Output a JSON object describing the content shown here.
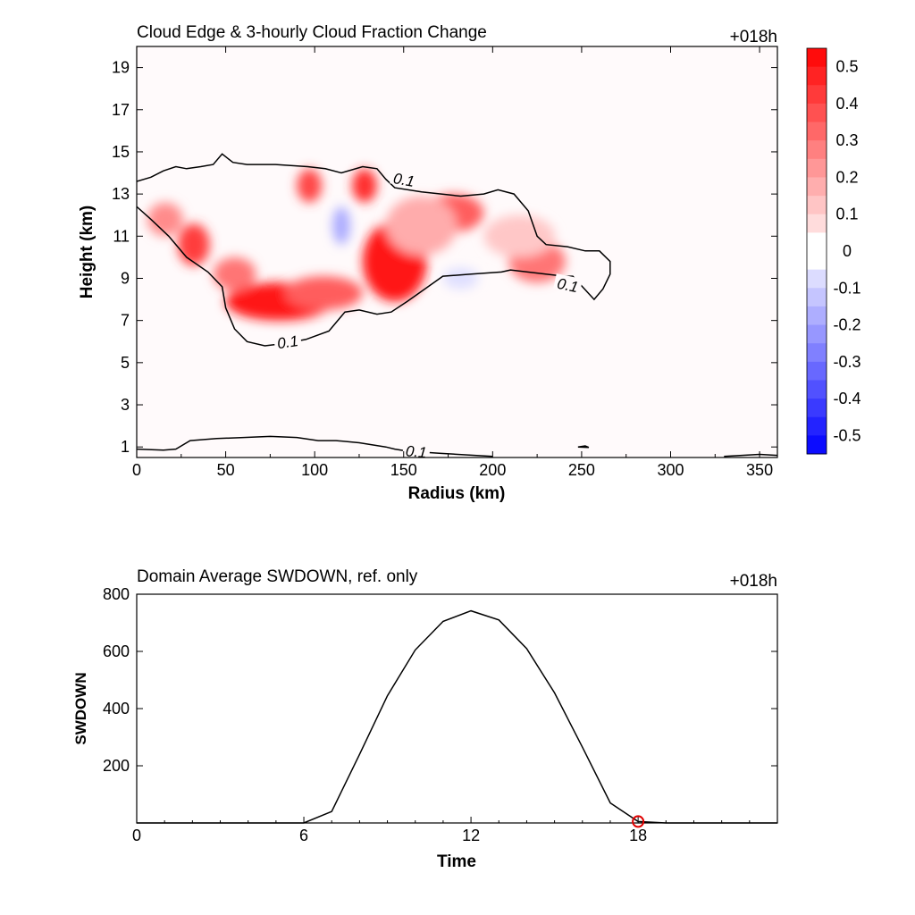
{
  "chart_data": [
    {
      "type": "heatmap",
      "title": "Cloud Edge & 3-hourly Cloud Fraction Change",
      "time_label": "+018h",
      "xlabel": "Radius (km)",
      "ylabel": "Height (km)",
      "xlim": [
        0,
        360
      ],
      "ylim": [
        0.5,
        20
      ],
      "xticks": [
        "0",
        "50",
        "100",
        "150",
        "200",
        "250",
        "300",
        "350"
      ],
      "yticks": [
        "1",
        "3",
        "5",
        "7",
        "9",
        "11",
        "13",
        "15",
        "17",
        "19"
      ],
      "colorbar": {
        "labels": [
          "0.5",
          "0.4",
          "0.3",
          "0.2",
          "0.1",
          "0",
          "-0.1",
          "-0.2",
          "-0.3",
          "-0.4",
          "-0.5"
        ],
        "range": [
          -0.55,
          0.55
        ],
        "positive_color": "#ff0000",
        "negative_color": "#0000ff"
      },
      "contour_level": "0.1",
      "blobs": [
        {
          "x": 145,
          "y": 9.8,
          "rx": 18,
          "ry": 1.9,
          "value": 0.5
        },
        {
          "x": 80,
          "y": 7.9,
          "rx": 30,
          "ry": 0.9,
          "value": 0.5
        },
        {
          "x": 105,
          "y": 8.3,
          "rx": 22,
          "ry": 0.8,
          "value": 0.35
        },
        {
          "x": 32,
          "y": 10.6,
          "rx": 9,
          "ry": 1.0,
          "value": 0.42
        },
        {
          "x": 55,
          "y": 9.2,
          "rx": 12,
          "ry": 0.8,
          "value": 0.3
        },
        {
          "x": 16,
          "y": 11.8,
          "rx": 10,
          "ry": 0.8,
          "value": 0.25
        },
        {
          "x": 97,
          "y": 13.4,
          "rx": 7,
          "ry": 0.8,
          "value": 0.4
        },
        {
          "x": 128,
          "y": 13.4,
          "rx": 7,
          "ry": 0.8,
          "value": 0.45
        },
        {
          "x": 178,
          "y": 12.1,
          "rx": 17,
          "ry": 0.9,
          "value": 0.35
        },
        {
          "x": 225,
          "y": 9.8,
          "rx": 16,
          "ry": 1.0,
          "value": 0.3
        },
        {
          "x": 215,
          "y": 11.0,
          "rx": 20,
          "ry": 1.0,
          "value": 0.12
        },
        {
          "x": 160,
          "y": 11.5,
          "rx": 20,
          "ry": 1.4,
          "value": 0.18
        },
        {
          "x": 115,
          "y": 11.5,
          "rx": 5,
          "ry": 0.9,
          "value": -0.18
        },
        {
          "x": 182,
          "y": 9.0,
          "rx": 10,
          "ry": 0.5,
          "value": -0.07
        }
      ],
      "contours": [
        {
          "label": "0.1",
          "points": [
            [
              0,
              12.4
            ],
            [
              8,
              11.8
            ],
            [
              18,
              11.0
            ],
            [
              28,
              10.0
            ],
            [
              40,
              9.3
            ],
            [
              48,
              8.6
            ],
            [
              50,
              7.6
            ],
            [
              55,
              6.6
            ],
            [
              62,
              6.0
            ],
            [
              72,
              5.8
            ],
            [
              82,
              5.9
            ],
            [
              95,
              6.1
            ],
            [
              108,
              6.5
            ],
            [
              117,
              7.4
            ],
            [
              125,
              7.5
            ],
            [
              135,
              7.3
            ],
            [
              143,
              7.4
            ],
            [
              152,
              7.9
            ],
            [
              162,
              8.5
            ],
            [
              172,
              9.1
            ],
            [
              188,
              9.2
            ],
            [
              205,
              9.3
            ],
            [
              210,
              9.4
            ],
            [
              240,
              9.1
            ],
            [
              245,
              9.1
            ],
            [
              257,
              8.0
            ],
            [
              262,
              8.5
            ],
            [
              266,
              9.2
            ],
            [
              266,
              9.8
            ],
            [
              260,
              10.3
            ],
            [
              252,
              10.3
            ],
            [
              242,
              10.5
            ],
            [
              230,
              10.6
            ],
            [
              225,
              11.0
            ],
            [
              220,
              12.2
            ],
            [
              212,
              13.0
            ],
            [
              203,
              13.2
            ],
            [
              195,
              13.0
            ],
            [
              182,
              12.9
            ],
            [
              160,
              13.1
            ],
            [
              145,
              13.3
            ],
            [
              140,
              13.7
            ],
            [
              135,
              14.2
            ],
            [
              127,
              14.3
            ],
            [
              115,
              14.0
            ],
            [
              106,
              14.2
            ],
            [
              96,
              14.3
            ],
            [
              78,
              14.4
            ],
            [
              62,
              14.4
            ],
            [
              54,
              14.5
            ],
            [
              48,
              14.9
            ],
            [
              43,
              14.4
            ],
            [
              36,
              14.3
            ],
            [
              28,
              14.2
            ],
            [
              22,
              14.3
            ],
            [
              15,
              14.1
            ],
            [
              8,
              13.8
            ],
            [
              0,
              13.6
            ]
          ],
          "closed": false
        },
        {
          "label": "0.1",
          "points": [
            [
              0,
              0.9
            ],
            [
              15,
              0.85
            ],
            [
              22,
              0.9
            ],
            [
              30,
              1.3
            ],
            [
              45,
              1.4
            ],
            [
              60,
              1.45
            ],
            [
              75,
              1.5
            ],
            [
              90,
              1.45
            ],
            [
              102,
              1.3
            ],
            [
              112,
              1.3
            ],
            [
              125,
              1.2
            ],
            [
              140,
              1.0
            ],
            [
              145,
              0.9
            ],
            [
              152,
              0.8
            ],
            [
              170,
              0.7
            ],
            [
              190,
              0.6
            ],
            [
              200,
              0.55
            ]
          ],
          "closed": false
        },
        {
          "label": "",
          "points": [
            [
              330,
              0.55
            ],
            [
              340,
              0.6
            ],
            [
              350,
              0.65
            ],
            [
              360,
              0.6
            ]
          ],
          "closed": false
        },
        {
          "label": "",
          "points": [
            [
              248,
              1.0
            ],
            [
              252,
              1.05
            ],
            [
              254,
              0.98
            ],
            [
              248,
              1.0
            ]
          ],
          "closed": true
        }
      ]
    },
    {
      "type": "line",
      "title": "Domain Average SWDOWN, ref. only",
      "time_label": "+018h",
      "xlabel": "Time",
      "ylabel": "SWDOWN",
      "xlim": [
        0,
        23
      ],
      "ylim": [
        0,
        800
      ],
      "xticks": [
        "0",
        "6",
        "12",
        "18"
      ],
      "yticks": [
        "200",
        "400",
        "600",
        "800"
      ],
      "series": [
        {
          "x": [
            0,
            1,
            2,
            3,
            4,
            5,
            6,
            7,
            8,
            9,
            10,
            11,
            12,
            13,
            14,
            15,
            16,
            17,
            18,
            19,
            20,
            21,
            22,
            23
          ],
          "values": [
            0,
            0,
            0,
            0,
            0,
            0,
            0,
            40,
            240,
            445,
            605,
            705,
            742,
            710,
            610,
            455,
            265,
            70,
            5,
            0,
            0,
            0,
            0,
            0
          ]
        }
      ],
      "marker": {
        "x": 18,
        "y": 5
      }
    }
  ]
}
